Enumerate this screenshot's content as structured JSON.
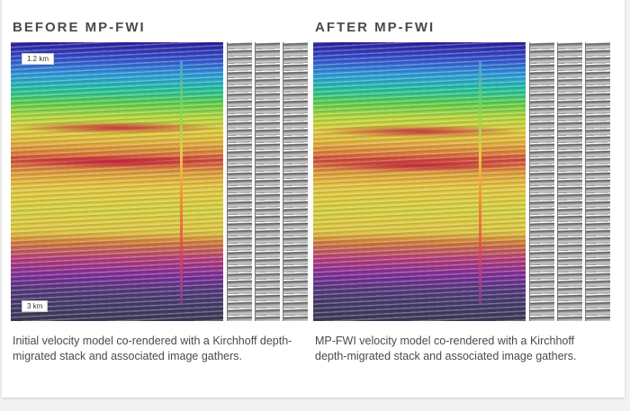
{
  "panels": [
    {
      "title": "BEFORE MP-FWI",
      "depth_top_label": "1.2 km",
      "depth_bottom_label": "3 km",
      "caption": "Initial velocity model co-rendered with a Kirchhoff depth-migrated stack and associated image gathers."
    },
    {
      "title": "AFTER MP-FWI",
      "caption": "MP-FWI velocity model co-rendered with a Kirchhoff depth-migrated stack and associated image gathers."
    }
  ],
  "colors": {
    "title_text": "#4a4a4a",
    "velocity_low": "#2a1f9e",
    "velocity_mid": "#e6c93e",
    "velocity_high": "#7a2d9a"
  }
}
